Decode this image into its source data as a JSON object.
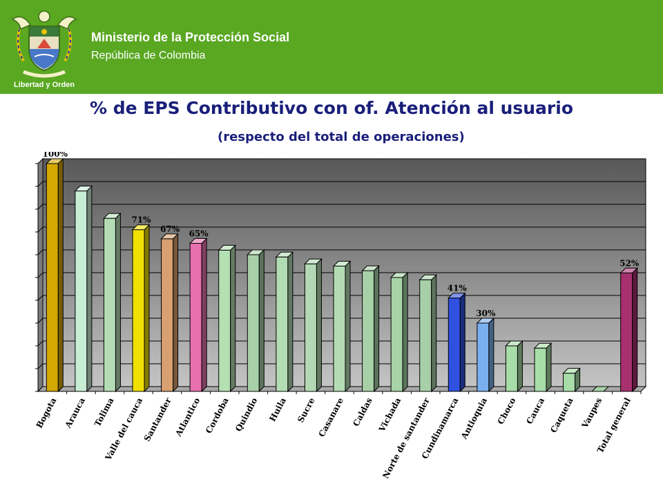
{
  "header": {
    "organization": "Ministerio de la Protección Social",
    "country": "República de Colombia",
    "motto": "Libertad y Orden"
  },
  "chart_data": {
    "type": "bar",
    "title": "% de EPS Contributivo con of. Atención al usuario",
    "subtitle": "(respecto del total de operaciones)",
    "categories": [
      "Bogota",
      "Arauca",
      "Tolima",
      "Valle del cauca",
      "Santander",
      "Atlantico",
      "Cordoba",
      "Quindio",
      "Huila",
      "Sucre",
      "Casanare",
      "Caldas",
      "Vichada",
      "Norte de santander",
      "Cundinamarca",
      "Antioquia",
      "Choco",
      "Cauca",
      "Caqueta",
      "Vaupes",
      "Total general"
    ],
    "values": [
      100,
      88,
      76,
      71,
      67,
      65,
      62,
      60,
      59,
      56,
      55,
      53,
      50,
      49,
      41,
      30,
      20,
      19,
      8,
      0,
      52
    ],
    "data_labels": [
      "100%",
      "",
      "",
      "71%",
      "67%",
      "65%",
      "",
      "",
      "",
      "",
      "",
      "",
      "",
      "",
      "41%",
      "30%",
      "",
      "",
      "",
      "",
      "52%"
    ],
    "ylim": [
      0,
      100
    ],
    "grid": true,
    "colors": [
      "#d4a800",
      "#c8ecd4",
      "#b4dcb4",
      "#f0e000",
      "#d8a070",
      "#e870b0",
      "#b4e0b4",
      "#a8d0a8",
      "#b4dcb4",
      "#b4d8b4",
      "#b4dcb4",
      "#a8d0a8",
      "#a8d4a8",
      "#a8d0a8",
      "#3050e0",
      "#7ab0ee",
      "#a8dca8",
      "#a8dca8",
      "#a8dca8",
      "#a8d4a8",
      "#a83070"
    ]
  }
}
